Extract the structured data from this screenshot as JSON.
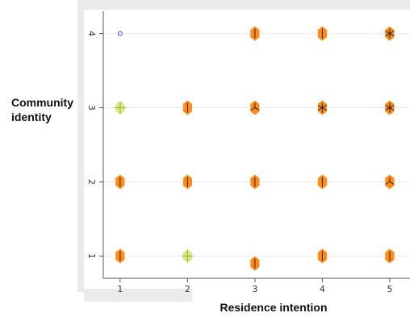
{
  "chart_data": {
    "type": "scatter",
    "title": "",
    "xlabel": "Residence intention",
    "ylabel": "Community identity",
    "xlim": [
      0.75,
      5.3
    ],
    "ylim": [
      0.7,
      4.3
    ],
    "x_ticks": [
      "1",
      "2",
      "3",
      "4",
      "5"
    ],
    "y_ticks": [
      "1",
      "2",
      "3",
      "4"
    ],
    "grid": true,
    "sunflower_color": "#ff8c1a",
    "marker_colors": {
      "single_outline": "#2b4fd6",
      "plus_fill": "#d7eb8a",
      "plus_line": "#a0b040",
      "sunflower": "#ff8c1a",
      "petal": "#222222"
    },
    "points": [
      {
        "x": 1,
        "y": 4,
        "marker": "circle"
      },
      {
        "x": 3,
        "y": 4,
        "marker": "sunflower",
        "petals": 1
      },
      {
        "x": 4,
        "y": 4,
        "marker": "sunflower",
        "petals": 1
      },
      {
        "x": 5,
        "y": 4,
        "marker": "sunflower",
        "petals": 6
      },
      {
        "x": 1,
        "y": 3,
        "marker": "plus"
      },
      {
        "x": 2,
        "y": 3,
        "marker": "sunflower",
        "petals": 1
      },
      {
        "x": 3,
        "y": 3,
        "marker": "sunflower",
        "petals": 3
      },
      {
        "x": 4,
        "y": 3,
        "marker": "sunflower",
        "petals": 6
      },
      {
        "x": 5,
        "y": 3,
        "marker": "sunflower",
        "petals": 6
      },
      {
        "x": 1,
        "y": 2,
        "marker": "sunflower",
        "petals": 1
      },
      {
        "x": 2,
        "y": 2,
        "marker": "sunflower",
        "petals": 1
      },
      {
        "x": 3,
        "y": 2,
        "marker": "sunflower",
        "petals": 1
      },
      {
        "x": 4,
        "y": 2,
        "marker": "sunflower",
        "petals": 1
      },
      {
        "x": 5,
        "y": 2,
        "marker": "sunflower",
        "petals": 3
      },
      {
        "x": 1,
        "y": 1,
        "marker": "sunflower",
        "petals": 1
      },
      {
        "x": 2,
        "y": 1,
        "marker": "plus"
      },
      {
        "x": 3,
        "y": 0.9,
        "marker": "sunflower",
        "petals": 1
      },
      {
        "x": 4,
        "y": 1,
        "marker": "sunflower",
        "petals": 1
      },
      {
        "x": 5,
        "y": 1,
        "marker": "sunflower",
        "petals": 1
      }
    ]
  }
}
